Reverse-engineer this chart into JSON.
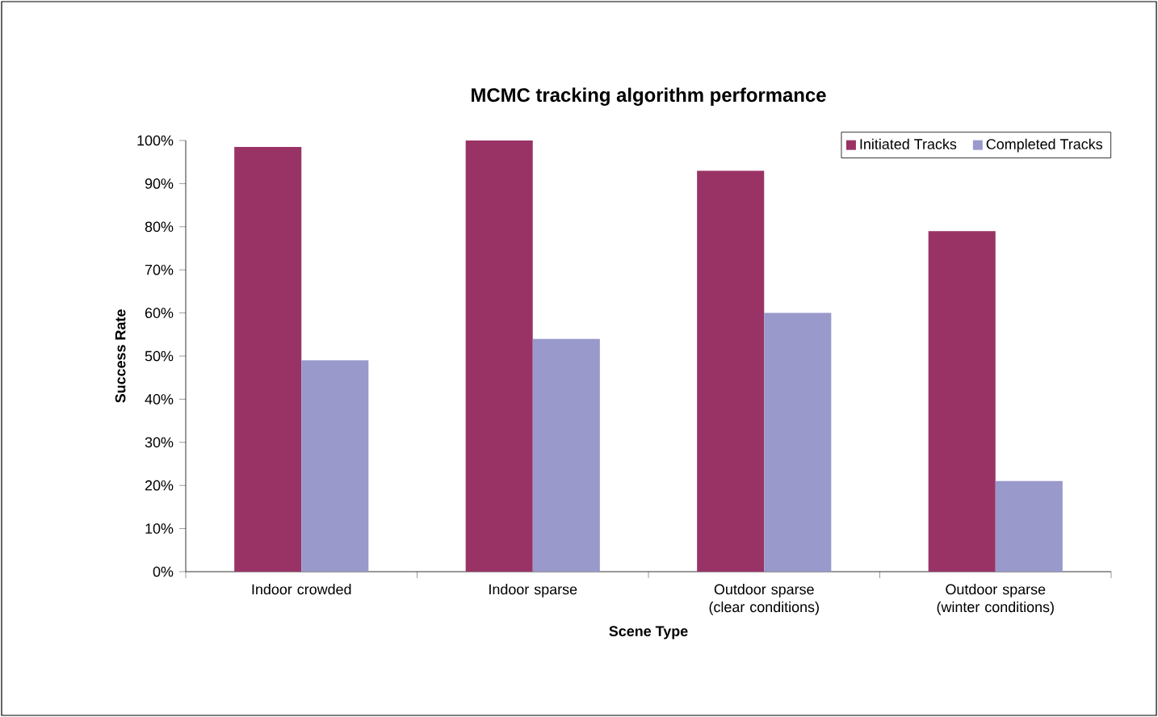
{
  "chart_data": {
    "type": "bar",
    "title": "MCMC tracking algorithm performance",
    "xlabel": "Scene Type",
    "ylabel": "Success Rate",
    "categories": [
      "Indoor crowded",
      "Indoor sparse",
      "Outdoor sparse (clear conditions)",
      "Outdoor sparse (winter conditions)"
    ],
    "series": [
      {
        "name": "Initiated Tracks",
        "color": "#993366",
        "values": [
          98.5,
          100,
          93,
          79
        ]
      },
      {
        "name": "Completed Tracks",
        "color": "#9999cc",
        "values": [
          49,
          54,
          60,
          21
        ]
      }
    ],
    "ylim": [
      0,
      100
    ],
    "yticks": [
      {
        "value": 0,
        "label": "0%"
      },
      {
        "value": 10,
        "label": "10%"
      },
      {
        "value": 20,
        "label": "20%"
      },
      {
        "value": 30,
        "label": "30%"
      },
      {
        "value": 40,
        "label": "40%"
      },
      {
        "value": 50,
        "label": "50%"
      },
      {
        "value": 60,
        "label": "60%"
      },
      {
        "value": 70,
        "label": "70%"
      },
      {
        "value": 80,
        "label": "80%"
      },
      {
        "value": 90,
        "label": "90%"
      },
      {
        "value": 100,
        "label": "100%"
      }
    ],
    "grid": false,
    "legend": "top right"
  }
}
